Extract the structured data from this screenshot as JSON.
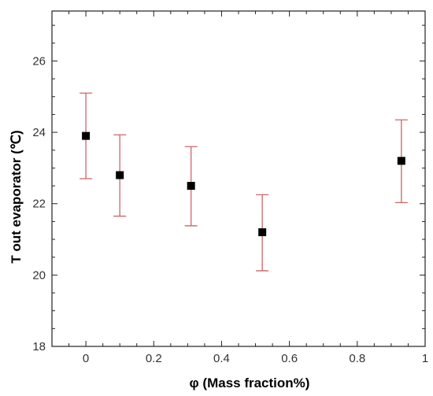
{
  "chart_data": {
    "type": "scatter",
    "title": "",
    "xlabel": "φ (Mass fraction%)",
    "ylabel": "T out evaporator (℃)",
    "xlim": [
      -0.1,
      1.0
    ],
    "ylim": [
      18,
      27.4
    ],
    "x_ticks": [
      "0",
      "0.2",
      "0.4",
      "0.6",
      "0.8",
      "1"
    ],
    "y_ticks": [
      "18",
      "20",
      "22",
      "24",
      "26"
    ],
    "grid": false,
    "legend": "none",
    "marker_color": "#000000",
    "errorbar_color": "#cc6666",
    "series": [
      {
        "x": [
          0.0,
          0.1,
          0.31,
          0.52,
          0.93
        ],
        "y": [
          23.9,
          22.8,
          22.5,
          21.2,
          23.2
        ],
        "y_err_low": [
          22.7,
          21.65,
          21.38,
          20.12,
          22.03
        ],
        "y_err_high": [
          25.1,
          23.93,
          23.6,
          22.25,
          24.35
        ]
      }
    ]
  }
}
